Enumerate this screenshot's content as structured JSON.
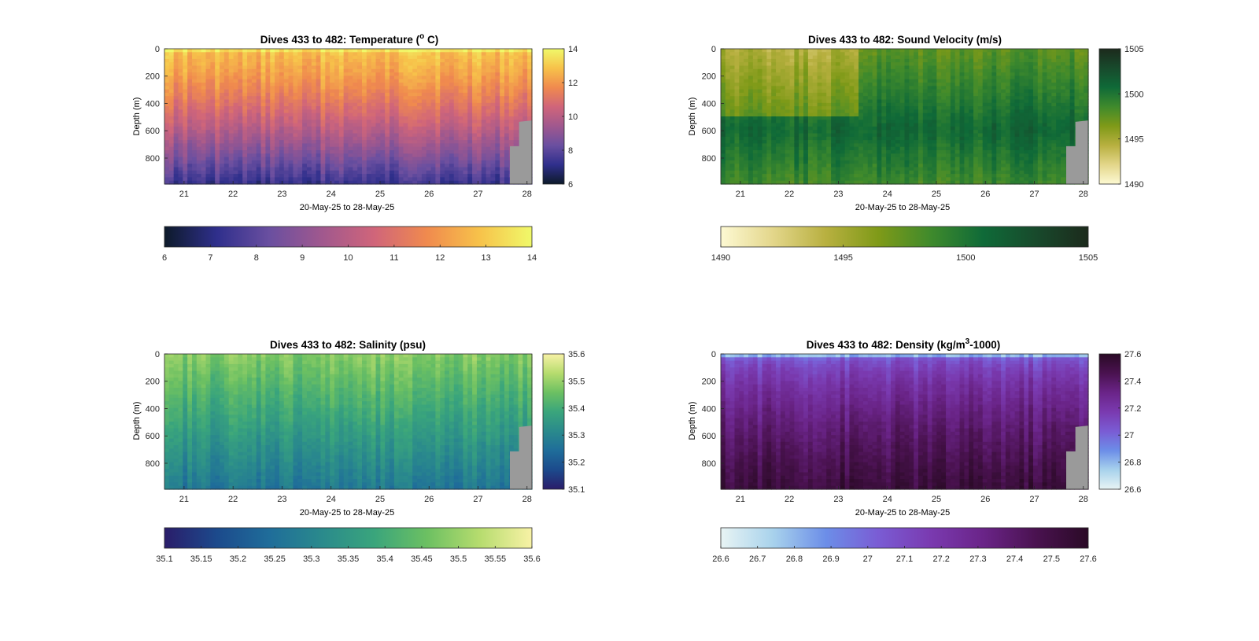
{
  "figure": {
    "time_label": "20-May-25 to 28-May-25",
    "depth_label": "Depth (m)"
  },
  "chart_data": [
    {
      "type": "heatmap",
      "title_main": "Dives 433 to 482: Temperature (",
      "title_sup": "o",
      "title_end": " C)",
      "xlabel": "20-May-25 to 28-May-25",
      "ylabel": "Depth (m)",
      "x_ticks": [
        "21",
        "22",
        "23",
        "24",
        "25",
        "26",
        "27",
        "28"
      ],
      "x_range": [
        20.6,
        28.1
      ],
      "y_ticks": [
        "0",
        "200",
        "400",
        "600",
        "800"
      ],
      "y_range": [
        0,
        990
      ],
      "color_range": [
        6,
        14
      ],
      "vertical_colorbar_ticks": [
        "6",
        "8",
        "10",
        "12",
        "14"
      ],
      "horizontal_colorbar_ticks": [
        "6",
        "7",
        "8",
        "9",
        "10",
        "11",
        "12",
        "13",
        "14"
      ],
      "colormap": [
        "#0d1a2a",
        "#2f2f8c",
        "#6a4fa0",
        "#a0588e",
        "#d0657a",
        "#f08a4e",
        "#f7c24a",
        "#f0f96a"
      ],
      "surface_value": 12.8,
      "deep_value": 7.4
    },
    {
      "type": "heatmap",
      "title_main": "Dives 433 to 482: Sound Velocity (m/s)",
      "title_sup": "",
      "title_end": "",
      "xlabel": "20-May-25 to 28-May-25",
      "ylabel": "Depth (m)",
      "x_ticks": [
        "21",
        "22",
        "23",
        "24",
        "25",
        "26",
        "27",
        "28"
      ],
      "x_range": [
        20.6,
        28.1
      ],
      "y_ticks": [
        "0",
        "200",
        "400",
        "600",
        "800"
      ],
      "y_range": [
        0,
        990
      ],
      "color_range": [
        1490,
        1505
      ],
      "vertical_colorbar_ticks": [
        "1490",
        "1495",
        "1500",
        "1505"
      ],
      "horizontal_colorbar_ticks": [
        "1490",
        "1495",
        "1500",
        "1505"
      ],
      "colormap": [
        "#fdf9d3",
        "#e3d68a",
        "#b8b040",
        "#7f9a18",
        "#3f8a2c",
        "#0f6a38",
        "#184a2c",
        "#1c2a1c"
      ],
      "surface_value": 1499.5,
      "deep_value": 1497.5
    },
    {
      "type": "heatmap",
      "title_main": "Dives 433 to 482: Salinity (psu)",
      "title_sup": "",
      "title_end": "",
      "xlabel": "20-May-25 to 28-May-25",
      "ylabel": "Depth (m)",
      "x_ticks": [
        "21",
        "22",
        "23",
        "24",
        "25",
        "26",
        "27",
        "28"
      ],
      "x_range": [
        20.6,
        28.1
      ],
      "y_ticks": [
        "0",
        "200",
        "400",
        "600",
        "800"
      ],
      "y_range": [
        0,
        990
      ],
      "color_range": [
        35.1,
        35.6
      ],
      "vertical_colorbar_ticks": [
        "35.1",
        "35.2",
        "35.3",
        "35.4",
        "35.5",
        "35.6"
      ],
      "horizontal_colorbar_ticks": [
        "35.1",
        "35.15",
        "35.2",
        "35.25",
        "35.3",
        "35.35",
        "35.4",
        "35.45",
        "35.5",
        "35.55",
        "35.6"
      ],
      "colormap": [
        "#2a1d6a",
        "#1c4a8c",
        "#1f6d9a",
        "#2a8a8c",
        "#3aa57c",
        "#6cc062",
        "#b6dc6e",
        "#f8f2a6"
      ],
      "surface_value": 35.48,
      "deep_value": 35.27
    },
    {
      "type": "heatmap",
      "title_main": "Dives 433 to 482: Density (kg/m",
      "title_sup": "3",
      "title_end": "-1000)",
      "xlabel": "20-May-25 to 28-May-25",
      "ylabel": "Depth (m)",
      "x_ticks": [
        "21",
        "22",
        "23",
        "24",
        "25",
        "26",
        "27",
        "28"
      ],
      "x_range": [
        20.6,
        28.1
      ],
      "y_ticks": [
        "0",
        "200",
        "400",
        "600",
        "800"
      ],
      "y_range": [
        0,
        990
      ],
      "color_range": [
        26.6,
        27.6
      ],
      "vertical_colorbar_ticks": [
        "26.6",
        "26.8",
        "27",
        "27.2",
        "27.4",
        "27.6"
      ],
      "horizontal_colorbar_ticks": [
        "26.6",
        "26.7",
        "26.8",
        "26.9",
        "27",
        "27.1",
        "27.2",
        "27.3",
        "27.4",
        "27.5",
        "27.6"
      ],
      "colormap": [
        "#e8f4f4",
        "#a8d2ec",
        "#6c8ee8",
        "#7a5cd4",
        "#7a3ab0",
        "#6a2488",
        "#4a1250",
        "#2a0a26"
      ],
      "surface_value": 26.95,
      "deep_value": 27.52
    }
  ]
}
